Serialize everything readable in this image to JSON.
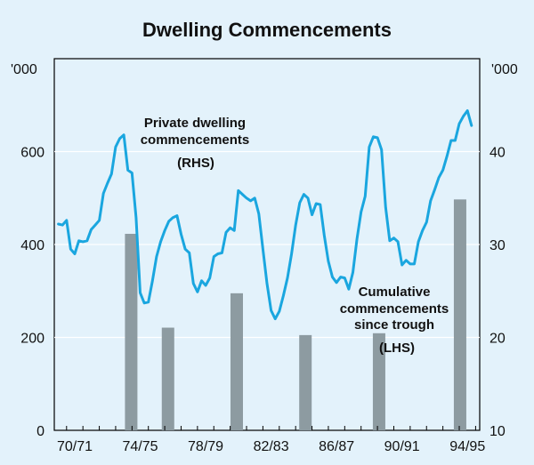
{
  "chart_data": {
    "type": "bar+line",
    "title": "Dwelling Commencements",
    "left_unit": "'000",
    "right_unit": "'000",
    "left_axis": {
      "min": 0,
      "max": 800,
      "ticks": [
        0,
        200,
        400,
        600
      ]
    },
    "right_axis": {
      "min": 10,
      "max": 50,
      "ticks": [
        10,
        20,
        30,
        40
      ]
    },
    "x_ticks": [
      "70/71",
      "74/75",
      "78/79",
      "82/83",
      "86/87",
      "90/91",
      "94/95"
    ],
    "bar_series": {
      "name": "Cumulative commencements since trough",
      "axis": "LHS",
      "values": [
        {
          "t": 1973.95,
          "value": 423
        },
        {
          "t": 1976.2,
          "value": 221
        },
        {
          "t": 1980.4,
          "value": 295
        },
        {
          "t": 1984.6,
          "value": 205
        },
        {
          "t": 1989.1,
          "value": 209
        },
        {
          "t": 1994.05,
          "value": 497
        }
      ]
    },
    "line_series": {
      "name": "Private dwelling commencements",
      "axis": "RHS",
      "points": [
        [
          1969.5,
          32.2
        ],
        [
          1969.75,
          32.1
        ],
        [
          1970.0,
          32.6
        ],
        [
          1970.25,
          29.5
        ],
        [
          1970.5,
          29.0
        ],
        [
          1970.75,
          30.4
        ],
        [
          1971.0,
          30.3
        ],
        [
          1971.25,
          30.4
        ],
        [
          1971.5,
          31.6
        ],
        [
          1971.75,
          32.1
        ],
        [
          1972.0,
          32.6
        ],
        [
          1972.25,
          35.5
        ],
        [
          1972.5,
          36.6
        ],
        [
          1972.75,
          37.6
        ],
        [
          1973.0,
          40.5
        ],
        [
          1973.25,
          41.4
        ],
        [
          1973.5,
          41.8
        ],
        [
          1973.75,
          38.0
        ],
        [
          1974.0,
          37.7
        ],
        [
          1974.25,
          32.9
        ],
        [
          1974.5,
          24.8
        ],
        [
          1974.75,
          23.7
        ],
        [
          1975.0,
          23.8
        ],
        [
          1975.25,
          26.1
        ],
        [
          1975.5,
          28.7
        ],
        [
          1975.75,
          30.3
        ],
        [
          1976.0,
          31.5
        ],
        [
          1976.25,
          32.5
        ],
        [
          1976.5,
          32.9
        ],
        [
          1976.75,
          33.1
        ],
        [
          1977.0,
          31.1
        ],
        [
          1977.25,
          29.5
        ],
        [
          1977.5,
          29.1
        ],
        [
          1977.75,
          25.8
        ],
        [
          1978.0,
          24.9
        ],
        [
          1978.25,
          26.1
        ],
        [
          1978.5,
          25.6
        ],
        [
          1978.75,
          26.4
        ],
        [
          1979.0,
          28.7
        ],
        [
          1979.25,
          29.0
        ],
        [
          1979.5,
          29.1
        ],
        [
          1979.75,
          31.3
        ],
        [
          1980.0,
          31.8
        ],
        [
          1980.25,
          31.5
        ],
        [
          1980.5,
          35.8
        ],
        [
          1980.75,
          35.4
        ],
        [
          1981.0,
          35.0
        ],
        [
          1981.25,
          34.7
        ],
        [
          1981.5,
          35.0
        ],
        [
          1981.75,
          33.3
        ],
        [
          1982.0,
          29.5
        ],
        [
          1982.25,
          25.8
        ],
        [
          1982.5,
          22.9
        ],
        [
          1982.75,
          22.0
        ],
        [
          1983.0,
          22.8
        ],
        [
          1983.25,
          24.5
        ],
        [
          1983.5,
          26.4
        ],
        [
          1983.75,
          29.0
        ],
        [
          1984.0,
          32.1
        ],
        [
          1984.25,
          34.5
        ],
        [
          1984.5,
          35.4
        ],
        [
          1984.75,
          35.0
        ],
        [
          1985.0,
          33.2
        ],
        [
          1985.25,
          34.4
        ],
        [
          1985.5,
          34.3
        ],
        [
          1985.75,
          31.0
        ],
        [
          1986.0,
          28.2
        ],
        [
          1986.25,
          26.5
        ],
        [
          1986.5,
          25.9
        ],
        [
          1986.75,
          26.5
        ],
        [
          1987.0,
          26.4
        ],
        [
          1987.25,
          25.2
        ],
        [
          1987.5,
          27.0
        ],
        [
          1987.75,
          30.6
        ],
        [
          1988.0,
          33.5
        ],
        [
          1988.25,
          35.2
        ],
        [
          1988.5,
          40.5
        ],
        [
          1988.75,
          41.6
        ],
        [
          1989.0,
          41.5
        ],
        [
          1989.25,
          40.2
        ],
        [
          1989.5,
          34.0
        ],
        [
          1989.75,
          30.4
        ],
        [
          1990.0,
          30.7
        ],
        [
          1990.25,
          30.3
        ],
        [
          1990.5,
          27.8
        ],
        [
          1990.75,
          28.3
        ],
        [
          1991.0,
          27.9
        ],
        [
          1991.25,
          27.9
        ],
        [
          1991.5,
          30.3
        ],
        [
          1991.75,
          31.5
        ],
        [
          1992.0,
          32.4
        ],
        [
          1992.25,
          34.7
        ],
        [
          1992.5,
          35.9
        ],
        [
          1992.75,
          37.2
        ],
        [
          1993.0,
          38.0
        ],
        [
          1993.25,
          39.5
        ],
        [
          1993.5,
          41.2
        ],
        [
          1993.75,
          41.2
        ],
        [
          1994.0,
          43.0
        ],
        [
          1994.25,
          43.8
        ],
        [
          1994.5,
          44.4
        ],
        [
          1994.75,
          42.8
        ]
      ]
    },
    "annotations": {
      "line_label": [
        "Private dwelling",
        "commencements"
      ],
      "line_axis_note": "(RHS)",
      "bar_label": [
        "Cumulative",
        "commencements",
        "since trough"
      ],
      "bar_axis_note": "(LHS)"
    },
    "colors": {
      "line": "#1aa6df",
      "bar": "#8d9ba1",
      "grid": "#ffffff",
      "background": "#e3f2fb"
    }
  }
}
